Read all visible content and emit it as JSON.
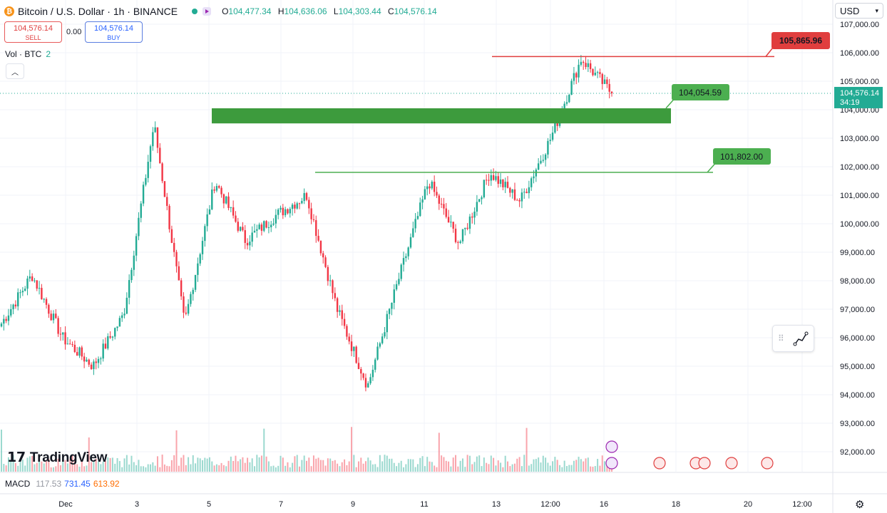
{
  "header": {
    "symbol": "Bitcoin / U.S. Dollar · 1h · BINANCE",
    "ohlc": {
      "o_label": "O",
      "o": "104,477.34",
      "h_label": "H",
      "h": "104,636.06",
      "l_label": "L",
      "l": "104,303.44",
      "c_label": "C",
      "c": "104,576.14"
    }
  },
  "trade": {
    "sell_price": "104,576.14",
    "sell_label": "SELL",
    "spread": "0.00",
    "buy_price": "104,576.14",
    "buy_label": "BUY"
  },
  "volume_legend": {
    "label": "Vol · BTC",
    "value": "2"
  },
  "currency_select": {
    "value": "USD",
    "chevron": "chevron-down-icon"
  },
  "macd_legend": {
    "label": "MACD",
    "v1": "117.53",
    "v2": "731.45",
    "v3": "613.92"
  },
  "brand": {
    "name": "TradingView"
  },
  "colors": {
    "up": "#22ab94",
    "down": "#f23645",
    "zone": "#3d9b3d",
    "resistance": "#e03e3e",
    "support": "#4caf50"
  },
  "chart_data": {
    "type": "candlestick",
    "y_ticks": [
      107000,
      106000,
      105000,
      104000,
      103000,
      102000,
      101000,
      100000,
      99000,
      98000,
      97000,
      96000,
      95000,
      94000,
      93000,
      92000
    ],
    "y_tick_labels": [
      "107,000.00",
      "106,000.00",
      "105,000.00",
      "104,000.00",
      "103,000.00",
      "102,000.00",
      "101,000.00",
      "100,000.00",
      "99,000.00",
      "98,000.00",
      "97,000.00",
      "96,000.00",
      "95,000.00",
      "94,000.00",
      "93,000.00",
      "92,000.00"
    ],
    "x_tick_labels": [
      "Dec",
      "3",
      "5",
      "7",
      "9",
      "11",
      "13",
      "12:00",
      "16",
      "18",
      "20",
      "12:00"
    ],
    "last_price": "104,576.14",
    "countdown": "34:19",
    "key_points": [
      {
        "t": "Dec 1",
        "price": 96500
      },
      {
        "t": "Dec 1",
        "price": 98200
      },
      {
        "t": "Dec 2",
        "price": 96000
      },
      {
        "t": "Dec 3",
        "price": 95000
      },
      {
        "t": "Dec 4",
        "price": 96800
      },
      {
        "t": "Dec 5",
        "price": 103500
      },
      {
        "t": "Dec 5",
        "price": 96500
      },
      {
        "t": "Dec 6",
        "price": 101500
      },
      {
        "t": "Dec 7",
        "price": 99400
      },
      {
        "t": "Dec 8",
        "price": 100300
      },
      {
        "t": "Dec 9",
        "price": 101000
      },
      {
        "t": "Dec 10",
        "price": 97000
      },
      {
        "t": "Dec 10",
        "price": 94300
      },
      {
        "t": "Dec 11",
        "price": 98000
      },
      {
        "t": "Dec 12",
        "price": 101500
      },
      {
        "t": "Dec 13",
        "price": 99300
      },
      {
        "t": "Dec 14",
        "price": 101800
      },
      {
        "t": "Dec 15",
        "price": 100800
      },
      {
        "t": "Dec 16",
        "price": 103000
      },
      {
        "t": "Dec 16",
        "price": 105800
      },
      {
        "t": "Dec 16",
        "price": 104576
      }
    ],
    "annotations": [
      {
        "label": "105,865.96",
        "price": 105865.96,
        "kind": "resistance-line"
      },
      {
        "label": "104,054.59",
        "price": 104054.59,
        "kind": "zone-top"
      },
      {
        "label": "101,802.00",
        "price": 101802.0,
        "kind": "support-line"
      }
    ],
    "zone": {
      "top": 104050,
      "bottom": 103520
    },
    "event_markers": [
      "sparkle-icon",
      "lightning-icon",
      "us-flag-icon",
      "us-flag-icon",
      "us-flag-icon",
      "us-flag-icon",
      "us-flag-icon"
    ]
  }
}
